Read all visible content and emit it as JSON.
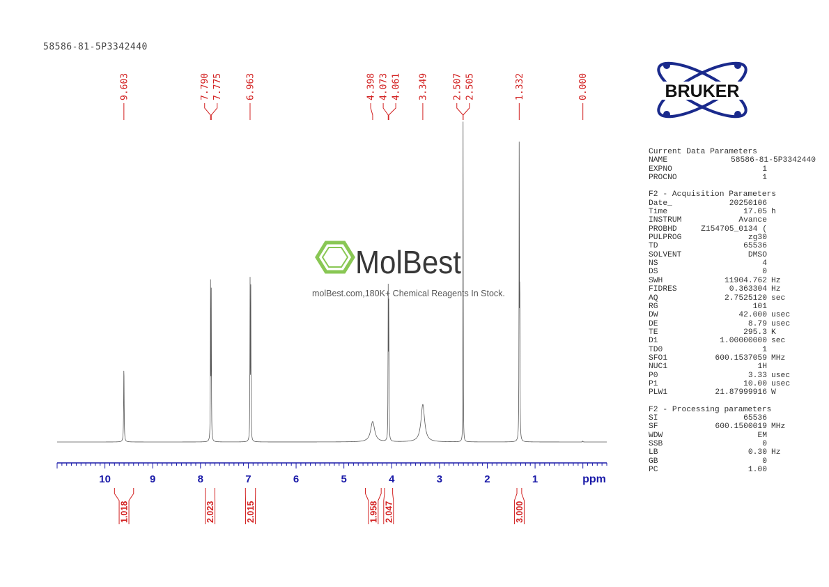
{
  "title": "58586-81-5P3342440",
  "logo": {
    "text": "BRUKER",
    "color": "#1a2a8c"
  },
  "watermark": {
    "brand": "MolBest",
    "tagline": "molBest.com,180K+ Chemical Reagents In Stock.",
    "color": "#7dc142"
  },
  "colors": {
    "axis": "#1a1aa8",
    "annotation": "#d22020",
    "spectrum": "#555555"
  },
  "params": {
    "current": {
      "heading": "Current Data Parameters",
      "rows": [
        [
          "NAME",
          "58586-81-5P3342440",
          ""
        ],
        [
          "EXPNO",
          "1",
          ""
        ],
        [
          "PROCNO",
          "1",
          ""
        ]
      ]
    },
    "acquisition": {
      "heading": "F2 - Acquisition Parameters",
      "rows": [
        [
          "Date_",
          "20250106",
          ""
        ],
        [
          "Time",
          "17.05",
          "h"
        ],
        [
          "INSTRUM",
          "Avance",
          ""
        ],
        [
          "PROBHD",
          "Z154705_0134 (",
          ""
        ],
        [
          "PULPROG",
          "zg30",
          ""
        ],
        [
          "TD",
          "65536",
          ""
        ],
        [
          "SOLVENT",
          "DMSO",
          ""
        ],
        [
          "NS",
          "4",
          ""
        ],
        [
          "DS",
          "0",
          ""
        ],
        [
          "SWH",
          "11904.762",
          "Hz"
        ],
        [
          "FIDRES",
          "0.363304",
          "Hz"
        ],
        [
          "AQ",
          "2.7525120",
          "sec"
        ],
        [
          "RG",
          "101",
          ""
        ],
        [
          "DW",
          "42.000",
          "usec"
        ],
        [
          "DE",
          "8.79",
          "usec"
        ],
        [
          "TE",
          "295.3",
          "K"
        ],
        [
          "D1",
          "1.00000000",
          "sec"
        ],
        [
          "TD0",
          "1",
          ""
        ],
        [
          "SFO1",
          "600.1537059",
          "MHz"
        ],
        [
          "NUC1",
          "1H",
          ""
        ],
        [
          "P0",
          "3.33",
          "usec"
        ],
        [
          "P1",
          "10.00",
          "usec"
        ],
        [
          "PLW1",
          "21.87999916",
          "W"
        ]
      ]
    },
    "processing": {
      "heading": "F2 - Processing parameters",
      "rows": [
        [
          "SI",
          "65536",
          ""
        ],
        [
          "SF",
          "600.1500019",
          "MHz"
        ],
        [
          "WDW",
          "EM",
          ""
        ],
        [
          "SSB",
          "0",
          ""
        ],
        [
          "LB",
          "0.30",
          "Hz"
        ],
        [
          "GB",
          "0",
          ""
        ],
        [
          "PC",
          "1.00",
          ""
        ]
      ]
    }
  },
  "chart_data": {
    "type": "line",
    "xlabel": "ppm",
    "xlim": [
      11.0,
      -0.5
    ],
    "x_reversed": true,
    "xticks": [
      10,
      9,
      8,
      7,
      6,
      5,
      4,
      3,
      2,
      1
    ],
    "xtick_labels": [
      "10",
      "9",
      "8",
      "7",
      "6",
      "5",
      "4",
      "3",
      "2",
      "1"
    ],
    "peaks": [
      {
        "ppm": 9.603,
        "label": "9.603",
        "intensity": 0.25,
        "width": 0.006
      },
      {
        "ppm": 7.79,
        "label": "7.790",
        "intensity": 0.51,
        "width": 0.004
      },
      {
        "ppm": 7.775,
        "label": "7.775",
        "intensity": 0.48,
        "width": 0.004
      },
      {
        "ppm": 6.963,
        "label": "6.963",
        "intensity": 0.52,
        "width": 0.004
      },
      {
        "ppm": 6.948,
        "label": "",
        "intensity": 0.49,
        "width": 0.004
      },
      {
        "ppm": 4.398,
        "label": "4.398",
        "intensity": 0.068,
        "width": 0.05
      },
      {
        "ppm": 4.073,
        "label": "4.073",
        "intensity": 0.48,
        "width": 0.004
      },
      {
        "ppm": 4.061,
        "label": "4.061",
        "intensity": 0.45,
        "width": 0.004
      },
      {
        "ppm": 3.349,
        "label": "3.349",
        "intensity": 0.125,
        "width": 0.045
      },
      {
        "ppm": 2.507,
        "label": "2.507",
        "intensity": 0.68,
        "width": 0.003
      },
      {
        "ppm": 2.505,
        "label": "2.505",
        "intensity": 0.5,
        "width": 0.003
      },
      {
        "ppm": 1.332,
        "label": "1.332",
        "intensity": 1.0,
        "width": 0.004
      },
      {
        "ppm": 1.32,
        "label": "",
        "intensity": 0.49,
        "width": 0.004
      },
      {
        "ppm": 0.0,
        "label": "0.000",
        "intensity": 0.003,
        "width": 0.004
      }
    ],
    "integrals": [
      {
        "from": 9.8,
        "to": 9.4,
        "value": "1.018"
      },
      {
        "from": 7.9,
        "to": 7.7,
        "value": "2.023"
      },
      {
        "from": 7.06,
        "to": 6.85,
        "value": "2.015"
      },
      {
        "from": 4.55,
        "to": 4.22,
        "value": "1.958"
      },
      {
        "from": 4.15,
        "to": 3.98,
        "value": "2.047"
      },
      {
        "from": 1.38,
        "to": 1.28,
        "value": "3.000"
      }
    ]
  }
}
